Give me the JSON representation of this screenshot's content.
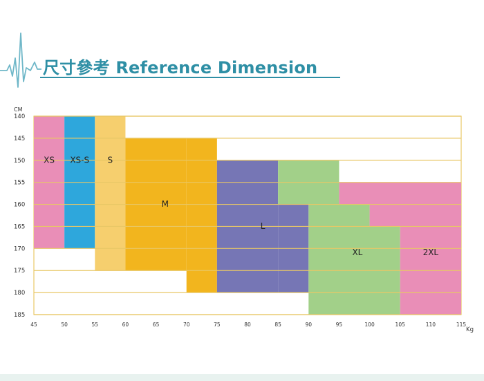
{
  "title": "尺寸參考 Reference Dimension",
  "colors": {
    "accent": "#2e8fa5",
    "grid_line": "#e8c766",
    "xs": "#e98eb7",
    "xs_s": "#2ea7dc",
    "s": "#f6cf6e",
    "m": "#f2b51e",
    "l": "#7676b5",
    "xl": "#a2d089",
    "xxl": "#e98eb7"
  },
  "chart_data": {
    "type": "table",
    "title": "",
    "x_unit": "Kg",
    "y_unit": "CM",
    "x_ticks": [
      45,
      50,
      55,
      60,
      65,
      70,
      75,
      80,
      85,
      90,
      95,
      100,
      105,
      110,
      115
    ],
    "y_ticks": [
      140,
      145,
      150,
      155,
      160,
      165,
      170,
      175,
      180,
      185
    ],
    "xlim": [
      45,
      115
    ],
    "ylim": [
      140,
      185
    ],
    "grid": true,
    "sizes": [
      {
        "name": "XS",
        "color": "xs",
        "label_at": [
          47.5,
          150
        ],
        "regions": [
          {
            "x": [
              45,
              50
            ],
            "y": [
              140,
              170
            ]
          }
        ]
      },
      {
        "name": "XS-S",
        "color": "xs_s",
        "label_at": [
          52.5,
          150
        ],
        "regions": [
          {
            "x": [
              50,
              55
            ],
            "y": [
              140,
              170
            ]
          }
        ]
      },
      {
        "name": "S",
        "color": "s",
        "label_at": [
          57.5,
          150
        ],
        "regions": [
          {
            "x": [
              55,
              60
            ],
            "y": [
              140,
              175
            ]
          }
        ]
      },
      {
        "name": "M",
        "color": "m",
        "label_at": [
          66.5,
          160
        ],
        "regions": [
          {
            "x": [
              60,
              70
            ],
            "y": [
              145,
              175
            ]
          },
          {
            "x": [
              70,
              75
            ],
            "y": [
              145,
              180
            ]
          }
        ]
      },
      {
        "name": "L",
        "color": "l",
        "label_at": [
          82.5,
          165
        ],
        "regions": [
          {
            "x": [
              75,
              85
            ],
            "y": [
              150,
              180
            ]
          },
          {
            "x": [
              85,
              90
            ],
            "y": [
              160,
              180
            ]
          }
        ]
      },
      {
        "name": "XL",
        "color": "xl",
        "label_at": [
          98,
          171
        ],
        "regions": [
          {
            "x": [
              85,
              95
            ],
            "y": [
              150,
              160
            ]
          },
          {
            "x": [
              90,
              100
            ],
            "y": [
              160,
              165
            ]
          },
          {
            "x": [
              90,
              105
            ],
            "y": [
              165,
              185
            ]
          }
        ]
      },
      {
        "name": "2XL",
        "color": "xxl",
        "label_at": [
          110,
          171
        ],
        "regions": [
          {
            "x": [
              95,
              115
            ],
            "y": [
              155,
              160
            ]
          },
          {
            "x": [
              100,
              115
            ],
            "y": [
              160,
              165
            ]
          },
          {
            "x": [
              105,
              115
            ],
            "y": [
              165,
              185
            ]
          }
        ]
      }
    ]
  }
}
